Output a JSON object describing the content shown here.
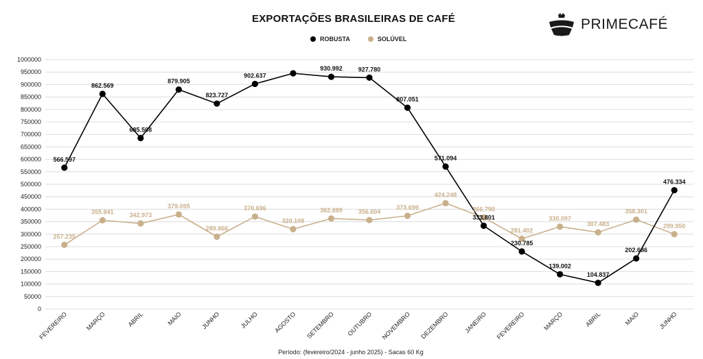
{
  "header": {
    "title": "EXPORTAÇÕES BRASILEIRAS DE CAFÉ",
    "brand": "PRIMECAFÉ"
  },
  "footer": {
    "note": "Período: (fevereiro/2024 - junho 2025) - Sacas 60 Kg"
  },
  "colors": {
    "robusta": "#000000",
    "soluvel": "#c9b08c",
    "grid": "#dcdcdc"
  },
  "chart_data": {
    "type": "line",
    "title": "EXPORTAÇÕES BRASILEIRAS DE CAFÉ",
    "xlabel": "",
    "ylabel": "",
    "ylim": [
      0,
      1000000
    ],
    "yticks": [
      0,
      50000,
      100000,
      150000,
      200000,
      250000,
      300000,
      350000,
      400000,
      450000,
      500000,
      550000,
      600000,
      650000,
      700000,
      750000,
      800000,
      850000,
      900000,
      950000,
      1000000
    ],
    "grid": true,
    "legend_position": "top-center",
    "categories": [
      "FEVEREIRO",
      "MARÇO",
      "ABRIL",
      "MAIO",
      "JUNHO",
      "JULHO",
      "AGOSTO",
      "SETEMBRO",
      "OUTUBRO",
      "NOVEMBRO",
      "DEZEMBRO",
      "JANEIRO",
      "FEVEREIRO",
      "MARÇO",
      "ABRIL",
      "MAIO",
      "JUNHO"
    ],
    "series": [
      {
        "name": "ROBUSTA",
        "color": "#000000",
        "values": [
          566597,
          862569,
          685508,
          879905,
          823727,
          902637,
          945000,
          930992,
          927780,
          807051,
          571094,
          333801,
          230785,
          139002,
          104837,
          202686,
          476334
        ],
        "labels": [
          "566.597",
          "862.569",
          "685.508",
          "879.905",
          "823.727",
          "902.637",
          null,
          "930.992",
          "927.780",
          "807.051",
          "571.094",
          "333.801",
          "230.785",
          "139.002",
          "104.837",
          "202.686",
          "476.334"
        ]
      },
      {
        "name": "SOLÚVEL",
        "color": "#c9b08c",
        "values": [
          257235,
          355841,
          342973,
          379095,
          289866,
          370696,
          320109,
          362889,
          356604,
          373699,
          424248,
          366790,
          281402,
          330097,
          307483,
          358301,
          299950
        ],
        "labels": [
          "257.235",
          "355.841",
          "342.973",
          "379.095",
          "289.866",
          "370.696",
          "320.109",
          "362.889",
          "356.604",
          "373.699",
          "424.248",
          "366.790",
          "281.402",
          "330.097",
          "307.483",
          "358.301",
          "299.950"
        ]
      }
    ]
  }
}
